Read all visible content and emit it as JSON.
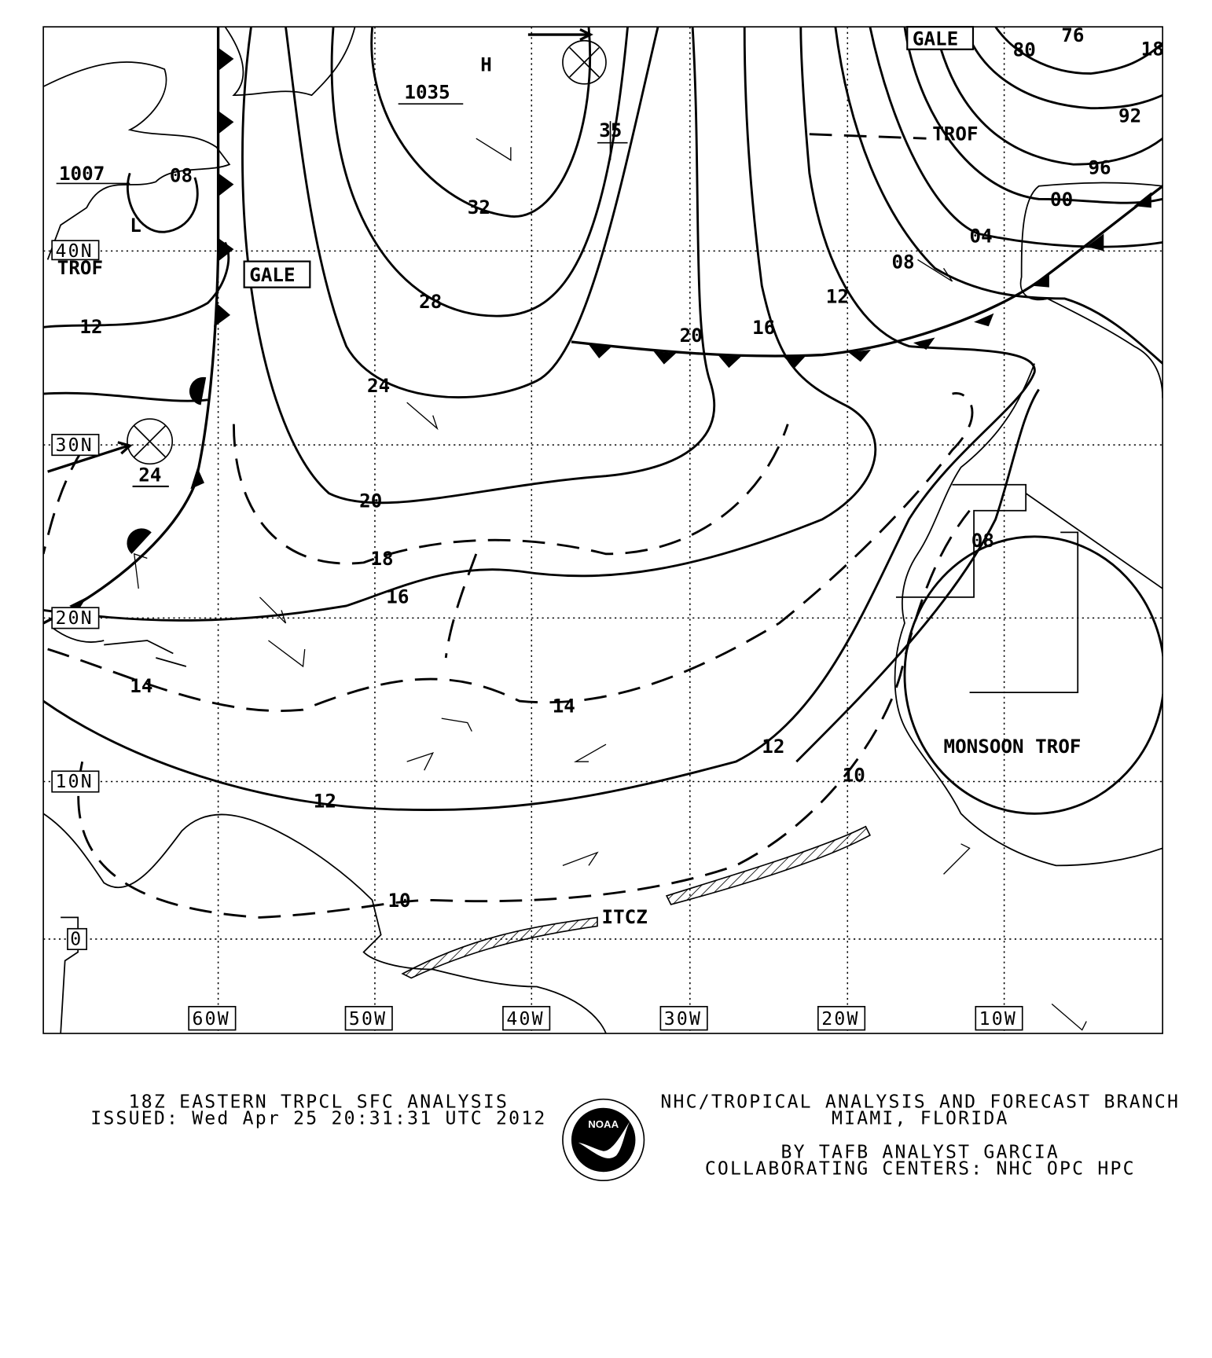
{
  "map": {
    "pressure_centers": {
      "high": "H",
      "high_value": "1035",
      "high_forecast": "35",
      "low": "L",
      "low_value": "1007",
      "low_forecast": "08",
      "low2_forecast": "24"
    },
    "isobar_labels": {
      "i32": "32",
      "i28": "28",
      "i24": "24",
      "i20a": "20",
      "i20b": "20",
      "i18": "18",
      "i16a": "16",
      "i16b": "16",
      "i14a": "14",
      "i14b": "14",
      "i12a": "12",
      "i12b": "12",
      "i12c": "12",
      "i12d": "12",
      "i10a": "10",
      "i10b": "10",
      "i08a": "08",
      "i08b": "08",
      "i04": "04",
      "i00": "00",
      "i96": "96",
      "i92": "92",
      "i80": "80",
      "i76": "76",
      "i18r": "18"
    },
    "features": {
      "gale1": "GALE",
      "gale2": "GALE",
      "trof1": "TROF",
      "trof2": "TROF",
      "monsoon": "MONSOON TROF",
      "itcz": "ITCZ"
    },
    "lat_labels": [
      "40N",
      "30N",
      "20N",
      "10N",
      "0"
    ],
    "lon_labels": [
      "60W",
      "50W",
      "40W",
      "30W",
      "20W",
      "10W"
    ]
  },
  "footer": {
    "title": "18Z EASTERN TRPCL SFC ANALYSIS",
    "issued": "ISSUED: Wed Apr 25 20:31:31 UTC 2012",
    "org": "NHC/TROPICAL ANALYSIS AND FORECAST BRANCH",
    "location": "MIAMI,  FLORIDA",
    "analyst": "BY TAFB ANALYST  GARCIA",
    "centers": "COLLABORATING CENTERS: NHC OPC HPC",
    "logo_text": "NOAA"
  }
}
